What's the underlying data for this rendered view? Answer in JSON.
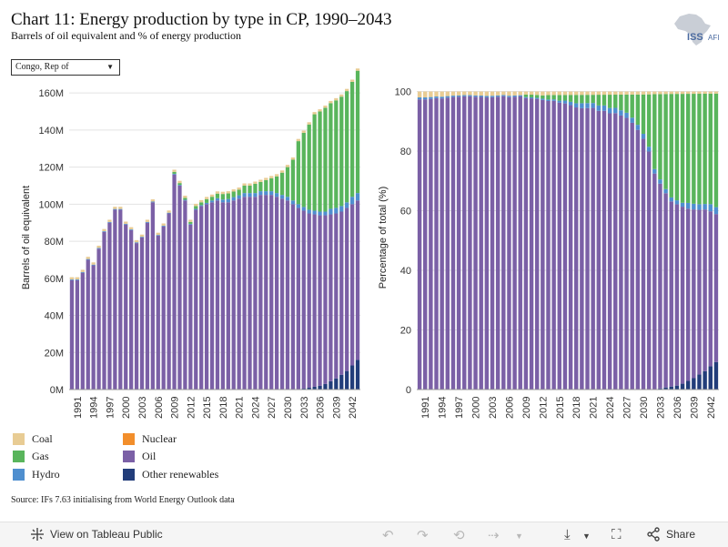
{
  "header": {
    "title": "Chart 11: Energy production by type in CP, 1990–2043",
    "subtitle": "Barrels of oil equivalent and % of energy production",
    "logo_text": "ISS",
    "logo_sub": "AFI"
  },
  "filter": {
    "selected": "Congo, Rep of"
  },
  "colors": {
    "coal": "#e8cc94",
    "nuclear": "#f28e2b",
    "gas": "#59b55c",
    "oil": "#7b60a6",
    "hydro": "#4f8fcf",
    "renewables": "#223d7a"
  },
  "legend": [
    {
      "key": "coal",
      "label": "Coal"
    },
    {
      "key": "nuclear",
      "label": "Nuclear"
    },
    {
      "key": "gas",
      "label": "Gas"
    },
    {
      "key": "oil",
      "label": "Oil"
    },
    {
      "key": "hydro",
      "label": "Hydro"
    },
    {
      "key": "renewables",
      "label": "Other renewables"
    }
  ],
  "source": "Source: IFs 7.63 initialising from World Energy Outlook data",
  "toolbar": {
    "view_label": "View on Tableau Public",
    "share_label": "Share"
  },
  "chart_data": [
    {
      "type": "bar",
      "stacked": true,
      "ylabel": "Barrels of oil equivalent",
      "ylim": [
        0,
        164
      ],
      "yticks": [
        0,
        20,
        40,
        60,
        80,
        100,
        120,
        140,
        160
      ],
      "ytick_labels": [
        "0M",
        "20M",
        "40M",
        "60M",
        "80M",
        "100M",
        "120M",
        "140M",
        "160M"
      ],
      "x": [
        1990,
        1991,
        1992,
        1993,
        1994,
        1995,
        1996,
        1997,
        1998,
        1999,
        2000,
        2001,
        2002,
        2003,
        2004,
        2005,
        2006,
        2007,
        2008,
        2009,
        2010,
        2011,
        2012,
        2013,
        2014,
        2015,
        2016,
        2017,
        2018,
        2019,
        2020,
        2021,
        2022,
        2023,
        2024,
        2025,
        2026,
        2027,
        2028,
        2029,
        2030,
        2031,
        2032,
        2033,
        2034,
        2035,
        2036,
        2037,
        2038,
        2039,
        2040,
        2041,
        2042,
        2043
      ],
      "xtick_labels": [
        "1991",
        "1994",
        "1997",
        "2000",
        "2003",
        "2006",
        "2009",
        "2012",
        "2015",
        "2018",
        "2021",
        "2024",
        "2027",
        "2030",
        "2033",
        "2036",
        "2039",
        "2042"
      ],
      "series": [
        {
          "name": "Other renewables",
          "key": "renewables",
          "values": [
            0,
            0,
            0,
            0,
            0,
            0,
            0,
            0,
            0,
            0,
            0,
            0,
            0,
            0,
            0,
            0,
            0,
            0,
            0,
            0,
            0,
            0,
            0,
            0,
            0,
            0,
            0,
            0,
            0,
            0,
            0,
            0,
            0,
            0,
            0,
            0,
            0,
            0,
            0,
            0,
            0,
            0,
            0,
            0.5,
            1,
            1.5,
            2,
            3,
            4.5,
            6,
            8,
            10,
            13,
            16
          ]
        },
        {
          "name": "Oil",
          "key": "oil",
          "values": [
            59,
            59,
            63,
            70,
            67,
            76,
            85,
            90,
            97,
            97,
            89,
            86,
            79,
            82,
            90,
            101,
            83,
            88,
            95,
            116,
            110,
            102,
            89,
            97,
            99,
            100,
            101,
            102,
            101,
            101,
            102,
            103,
            104,
            104,
            104,
            105,
            105,
            105,
            104,
            103,
            102,
            100,
            98,
            96,
            94,
            93,
            92,
            91,
            90,
            89,
            88,
            88,
            87,
            86
          ]
        },
        {
          "name": "Hydro",
          "key": "hydro",
          "values": [
            0.4,
            0.4,
            0.4,
            0.4,
            0.4,
            0.4,
            0.4,
            0.4,
            0.4,
            0.4,
            0.4,
            0.4,
            0.4,
            0.4,
            0.4,
            0.4,
            0.4,
            0.4,
            0.4,
            0.4,
            0.4,
            0.4,
            0.4,
            0.5,
            0.5,
            0.7,
            1,
            1.2,
            1.5,
            1.8,
            1.8,
            1.8,
            2,
            2,
            2,
            2,
            2,
            2,
            2,
            2,
            2,
            2,
            2,
            2,
            2,
            2,
            2,
            2,
            3,
            3,
            3,
            3,
            4,
            4
          ]
        },
        {
          "name": "Gas",
          "key": "gas",
          "values": [
            0,
            0,
            0,
            0,
            0,
            0,
            0,
            0,
            0,
            0,
            0,
            0,
            0,
            0,
            0,
            0,
            0,
            0,
            0,
            1,
            1,
            1,
            1,
            1.5,
            1.5,
            2,
            2,
            2.5,
            3,
            3,
            3,
            3,
            4,
            4,
            5,
            5,
            6,
            7,
            9,
            12,
            16,
            22,
            34,
            40,
            46,
            52,
            54,
            56,
            57,
            58,
            59,
            60,
            62,
            66
          ]
        },
        {
          "name": "Coal",
          "key": "coal",
          "values": [
            1.2,
            1.2,
            1.2,
            1.2,
            1.2,
            1.2,
            1.2,
            1.2,
            1.2,
            1.2,
            1.2,
            1.2,
            1.2,
            1.2,
            1.2,
            1.2,
            1.2,
            1.2,
            1.2,
            1.2,
            1.2,
            1.2,
            1.2,
            1.2,
            1.2,
            1.2,
            1.2,
            1.2,
            1.2,
            1.2,
            1.2,
            1.2,
            1.2,
            1.2,
            1.2,
            1.2,
            1.2,
            1.2,
            1.2,
            1.2,
            1.2,
            1.2,
            1.2,
            1.2,
            1.2,
            1.2,
            1.2,
            1.2,
            1.2,
            1.2,
            1.2,
            1.2,
            1.2,
            1.2
          ]
        }
      ]
    },
    {
      "type": "bar",
      "stacked": true,
      "percent": true,
      "ylabel": "Percentage of total (%)",
      "ylim": [
        0,
        102
      ],
      "yticks": [
        0,
        20,
        40,
        60,
        80,
        100
      ],
      "ytick_labels": [
        "0",
        "20",
        "40",
        "60",
        "80",
        "100"
      ],
      "x": [
        1990,
        1991,
        1992,
        1993,
        1994,
        1995,
        1996,
        1997,
        1998,
        1999,
        2000,
        2001,
        2002,
        2003,
        2004,
        2005,
        2006,
        2007,
        2008,
        2009,
        2010,
        2011,
        2012,
        2013,
        2014,
        2015,
        2016,
        2017,
        2018,
        2019,
        2020,
        2021,
        2022,
        2023,
        2024,
        2025,
        2026,
        2027,
        2028,
        2029,
        2030,
        2031,
        2032,
        2033,
        2034,
        2035,
        2036,
        2037,
        2038,
        2039,
        2040,
        2041,
        2042,
        2043
      ],
      "xtick_labels": [
        "1991",
        "1994",
        "1997",
        "2000",
        "2003",
        "2006",
        "2009",
        "2012",
        "2015",
        "2018",
        "2021",
        "2024",
        "2027",
        "2030",
        "2033",
        "2036",
        "2039",
        "2042"
      ],
      "series_ref": "same as chart 0, normalized to 100%"
    }
  ]
}
